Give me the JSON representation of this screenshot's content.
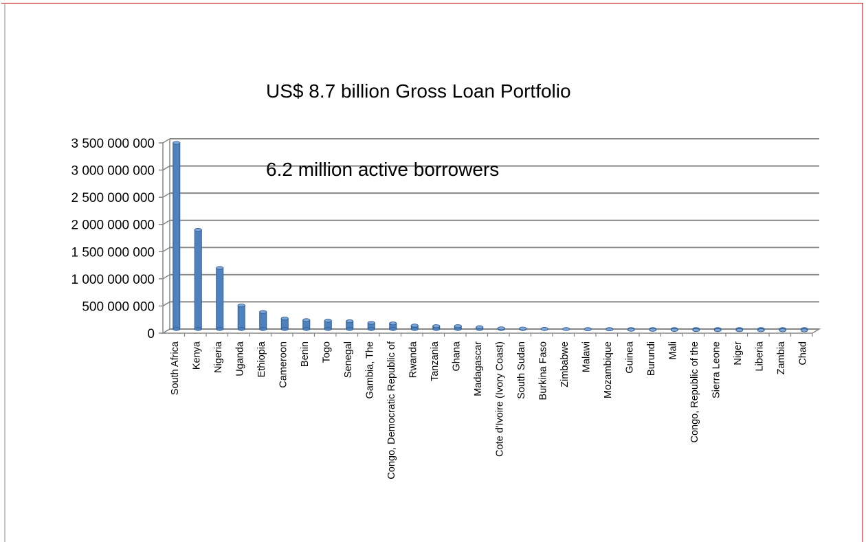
{
  "colors": {
    "bar_fill": "#4f81bd",
    "bar_top": "#7fa6d6",
    "bar_edge": "#2c5a8f",
    "grid": "#878787",
    "axis": "#878787",
    "border_left": "#878787",
    "border_right": "#c00000",
    "border_top": "#c00000"
  },
  "chart_data": {
    "type": "bar",
    "title": "US$ 8.7 billion Gross Loan Portfolio",
    "subtitle": "6.2 million active borrowers",
    "xlabel": "",
    "ylabel": "",
    "ylim": [
      0,
      3500000000
    ],
    "ytick_step": 500000000,
    "yticks": [
      "0",
      "500 000 000",
      "1 000 000 000",
      "1 500 000 000",
      "2 000 000 000",
      "2 500 000 000",
      "3 000 000 000",
      "3 500 000 000"
    ],
    "grid": true,
    "legend": "none",
    "categories": [
      "South Africa",
      "Kenya",
      "Nigeria",
      "Uganda",
      "Ethiopia",
      "Cameroon",
      "Benin",
      "Togo",
      "Senegal",
      "Gambia, The",
      "Congo, Democratic Republic of",
      "Rwanda",
      "Tanzania",
      "Ghana",
      "Madagascar",
      "Cote d'Ivoire (Ivory Coast)",
      "South Sudan",
      "Burkina Faso",
      "Zimbabwe",
      "Malawi",
      "Mozambique",
      "Guinea",
      "Burundi",
      "Mali",
      "Congo, Republic of the",
      "Sierra Leone",
      "Niger",
      "Liberia",
      "Zambia",
      "Chad"
    ],
    "values": [
      3450000000,
      1850000000,
      1150000000,
      460000000,
      340000000,
      220000000,
      190000000,
      180000000,
      170000000,
      140000000,
      130000000,
      90000000,
      80000000,
      80000000,
      60000000,
      40000000,
      35000000,
      30000000,
      25000000,
      20000000,
      18000000,
      12000000,
      10000000,
      8000000,
      6000000,
      5000000,
      4000000,
      3000000,
      2000000,
      1000000
    ]
  }
}
